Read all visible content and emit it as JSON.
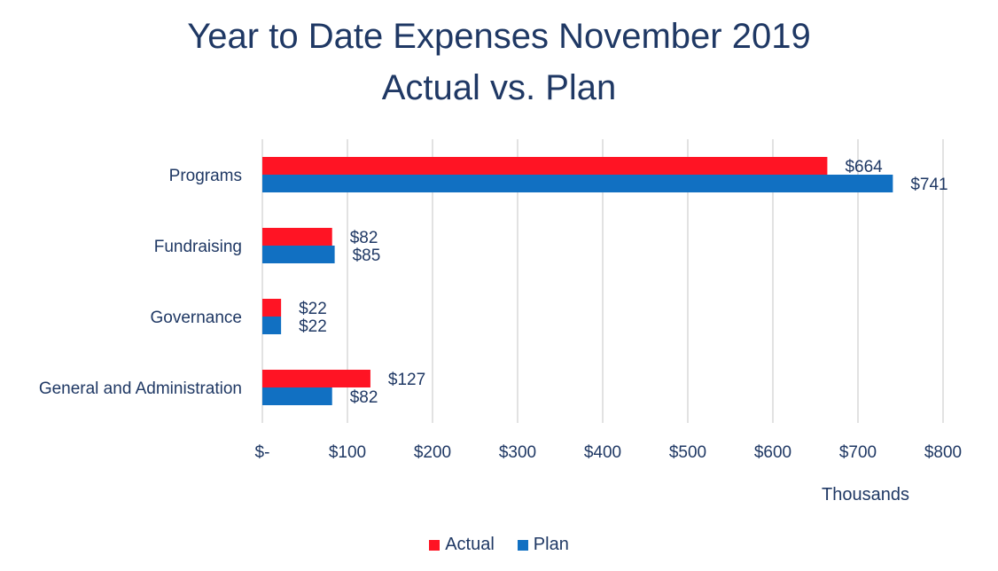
{
  "chart_data": {
    "type": "bar",
    "orientation": "horizontal",
    "title": "Year to Date Expenses November 2019",
    "subtitle": "Actual vs. Plan",
    "xlabel": "Thousands",
    "ylabel": "",
    "xlim": [
      0,
      800
    ],
    "x_ticks": [
      0,
      100,
      200,
      300,
      400,
      500,
      600,
      700,
      800
    ],
    "x_tick_labels": [
      "$-",
      "$100",
      "$200",
      "$300",
      "$400",
      "$500",
      "$600",
      "$700",
      "$800"
    ],
    "grid": "vertical",
    "legend_position": "bottom",
    "categories": [
      "Programs",
      "Fundraising",
      "Governance",
      "General and Administration"
    ],
    "series": [
      {
        "name": "Actual",
        "color": "#ff1424",
        "values": [
          664,
          82,
          22,
          127
        ],
        "labels": [
          "$664",
          "$82",
          "$22",
          "$127"
        ]
      },
      {
        "name": "Plan",
        "color": "#1170c2",
        "values": [
          741,
          85,
          22,
          82
        ],
        "labels": [
          "$741",
          "$85",
          "$22",
          "$82"
        ]
      }
    ]
  }
}
